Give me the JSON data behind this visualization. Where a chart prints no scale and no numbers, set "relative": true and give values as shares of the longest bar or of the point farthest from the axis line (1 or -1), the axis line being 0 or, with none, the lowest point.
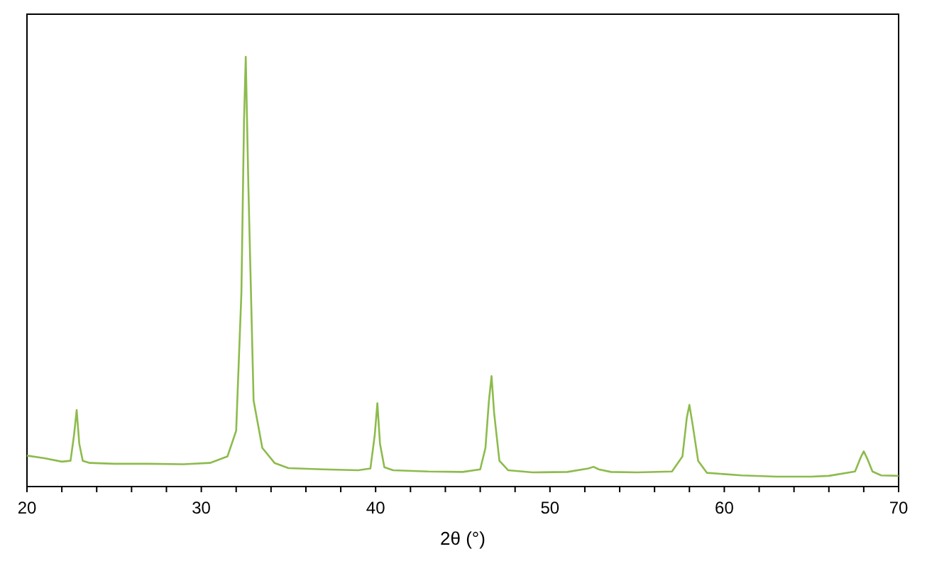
{
  "chart_data": {
    "type": "line",
    "xlabel": "2θ (°)",
    "relative": true,
    "xlim": [
      20,
      70
    ],
    "xticks": [
      20,
      {
        "value": 22,
        "label": null
      },
      {
        "value": 24,
        "label": null
      },
      {
        "value": 26,
        "label": null
      },
      {
        "value": 28,
        "label": null
      },
      30,
      {
        "value": 32,
        "label": null
      },
      {
        "value": 34,
        "label": null
      },
      {
        "value": 36,
        "label": null
      },
      {
        "value": 38,
        "label": null
      },
      40,
      {
        "value": 42,
        "label": null
      },
      {
        "value": 44,
        "label": null
      },
      {
        "value": 46,
        "label": null
      },
      {
        "value": 48,
        "label": null
      },
      50,
      {
        "value": 52,
        "label": null
      },
      {
        "value": 54,
        "label": null
      },
      {
        "value": 56,
        "label": null
      },
      {
        "value": 58,
        "label": null
      },
      60,
      {
        "value": 62,
        "label": null
      },
      {
        "value": 64,
        "label": null
      },
      {
        "value": 66,
        "label": null
      },
      {
        "value": 68,
        "label": null
      },
      70
    ],
    "grid": false,
    "marker": "none",
    "line_style": "solid",
    "series": [
      {
        "color": "#8dbb4c",
        "x": [
          20,
          21,
          22,
          22.5,
          22.7,
          22.85,
          23.0,
          23.2,
          23.6,
          25,
          27,
          29,
          30.5,
          31.5,
          32.0,
          32.3,
          32.45,
          32.55,
          32.7,
          33.0,
          33.5,
          34.2,
          35,
          37,
          39,
          39.7,
          39.95,
          40.1,
          40.25,
          40.5,
          41,
          43,
          45,
          46,
          46.3,
          46.5,
          46.65,
          46.8,
          47.1,
          47.6,
          49,
          51,
          52.2,
          52.5,
          52.8,
          53.5,
          55,
          57,
          57.6,
          57.85,
          58.0,
          58.2,
          58.5,
          59,
          61,
          63,
          65,
          66,
          67.5,
          67.85,
          68.0,
          68.2,
          68.5,
          69,
          70
        ],
        "values": [
          0.072,
          0.066,
          0.058,
          0.06,
          0.12,
          0.178,
          0.1,
          0.06,
          0.055,
          0.053,
          0.053,
          0.052,
          0.055,
          0.07,
          0.13,
          0.45,
          0.85,
          1.0,
          0.7,
          0.2,
          0.09,
          0.055,
          0.043,
          0.04,
          0.038,
          0.042,
          0.12,
          0.194,
          0.1,
          0.045,
          0.038,
          0.035,
          0.034,
          0.04,
          0.09,
          0.2,
          0.257,
          0.17,
          0.06,
          0.038,
          0.033,
          0.034,
          0.042,
          0.046,
          0.04,
          0.034,
          0.033,
          0.035,
          0.07,
          0.16,
          0.19,
          0.14,
          0.06,
          0.032,
          0.026,
          0.023,
          0.023,
          0.025,
          0.035,
          0.07,
          0.082,
          0.065,
          0.035,
          0.026,
          0.025
        ]
      }
    ]
  }
}
